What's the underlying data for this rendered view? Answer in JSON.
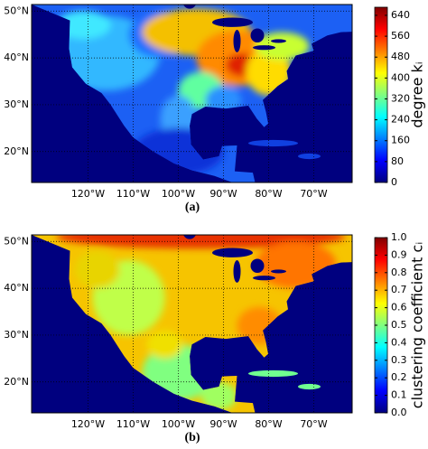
{
  "chart_data": [
    {
      "type": "heatmap",
      "colormap": "jet",
      "grid": true,
      "caption": "(a)",
      "colorbar_label": "degree kᵢ",
      "xlim": [
        -132.5,
        -61.5
      ],
      "ylim": [
        13.4,
        51.4
      ],
      "xticks": [
        {
          "value": -120,
          "label": "120°W"
        },
        {
          "value": -110,
          "label": "110°W"
        },
        {
          "value": -100,
          "label": "100°W"
        },
        {
          "value": -90,
          "label": "90°W"
        },
        {
          "value": -80,
          "label": "80°W"
        },
        {
          "value": -70,
          "label": "70°W"
        }
      ],
      "yticks": [
        {
          "value": 20,
          "label": "20°N"
        },
        {
          "value": 30,
          "label": "30°N"
        },
        {
          "value": 40,
          "label": "40°N"
        },
        {
          "value": 50,
          "label": "50°N"
        }
      ],
      "zlim": [
        0,
        671
      ],
      "zticks": [
        0,
        80,
        160,
        240,
        320,
        400,
        480,
        560,
        640
      ]
    },
    {
      "type": "heatmap",
      "colormap": "jet",
      "grid": true,
      "caption": "(b)",
      "colorbar_label": "clustering coefficient cᵢ",
      "xlim": [
        -132.5,
        -61.5
      ],
      "ylim": [
        13.4,
        51.4
      ],
      "xticks": [
        {
          "value": -120,
          "label": "120°W"
        },
        {
          "value": -110,
          "label": "110°W"
        },
        {
          "value": -100,
          "label": "100°W"
        },
        {
          "value": -90,
          "label": "90°W"
        },
        {
          "value": -80,
          "label": "80°W"
        },
        {
          "value": -70,
          "label": "70°W"
        }
      ],
      "yticks": [
        {
          "value": 20,
          "label": "20°N"
        },
        {
          "value": 30,
          "label": "30°N"
        },
        {
          "value": 40,
          "label": "40°N"
        },
        {
          "value": 50,
          "label": "50°N"
        }
      ],
      "zlim": [
        0,
        1
      ],
      "zticks": [
        {
          "value": 0,
          "label": "0.0"
        },
        {
          "value": 0.1,
          "label": "0.1"
        },
        {
          "value": 0.2,
          "label": "0.2"
        },
        {
          "value": 0.3,
          "label": "0.3"
        },
        {
          "value": 0.4,
          "label": "0.4"
        },
        {
          "value": 0.5,
          "label": "0.5"
        },
        {
          "value": 0.6,
          "label": "0.6"
        },
        {
          "value": 0.7,
          "label": "0.7"
        },
        {
          "value": 0.8,
          "label": "0.8"
        },
        {
          "value": 0.9,
          "label": "0.9"
        },
        {
          "value": 1,
          "label": "1.0"
        }
      ]
    }
  ]
}
